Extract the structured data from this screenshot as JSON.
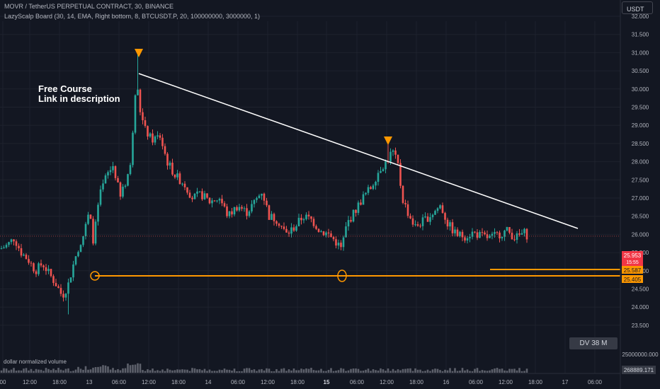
{
  "header": {
    "symbol_line": "MOVR / TetherUS PERPETUAL CONTRACT, 30, BINANCE",
    "indicator_line": "LazyScalp Board (30, 14, EMA, Right bottom, 8, BTCUSDT.P, 20, 100000000, 3000000, 1)"
  },
  "currency_button": "USDT",
  "annotation": {
    "line1": "Free Course",
    "line2": "Link in description"
  },
  "dv_badge": "DV 38 M",
  "volume_label": "dollar normalized volume",
  "price_axis": {
    "ticks": [
      "32.000",
      "31.500",
      "31.000",
      "30.500",
      "30.000",
      "29.500",
      "29.000",
      "28.500",
      "28.000",
      "27.500",
      "27.000",
      "26.500",
      "26.000",
      "25.500",
      "25.000",
      "24.500",
      "24.000",
      "23.500"
    ],
    "volume_tick": "25000000.000",
    "volume_value": "268889.171"
  },
  "price_labels": {
    "last_price": "25.953",
    "countdown": "15:55",
    "level_upper": "25.587",
    "level_lower": "25.405"
  },
  "time_axis": [
    "00",
    "12:00",
    "18:00",
    "13",
    "06:00",
    "12:00",
    "18:00",
    "14",
    "06:00",
    "12:00",
    "18:00",
    "15",
    "06:00",
    "12:00",
    "18:00",
    "16",
    "06:00",
    "12:00",
    "18:00",
    "17",
    "06:00"
  ],
  "colors": {
    "background": "#131722",
    "up": "#26a69a",
    "down": "#ef5350",
    "level_line": "#ff9800",
    "trendline": "#ffffff",
    "last_price_bg": "#f23645"
  }
}
